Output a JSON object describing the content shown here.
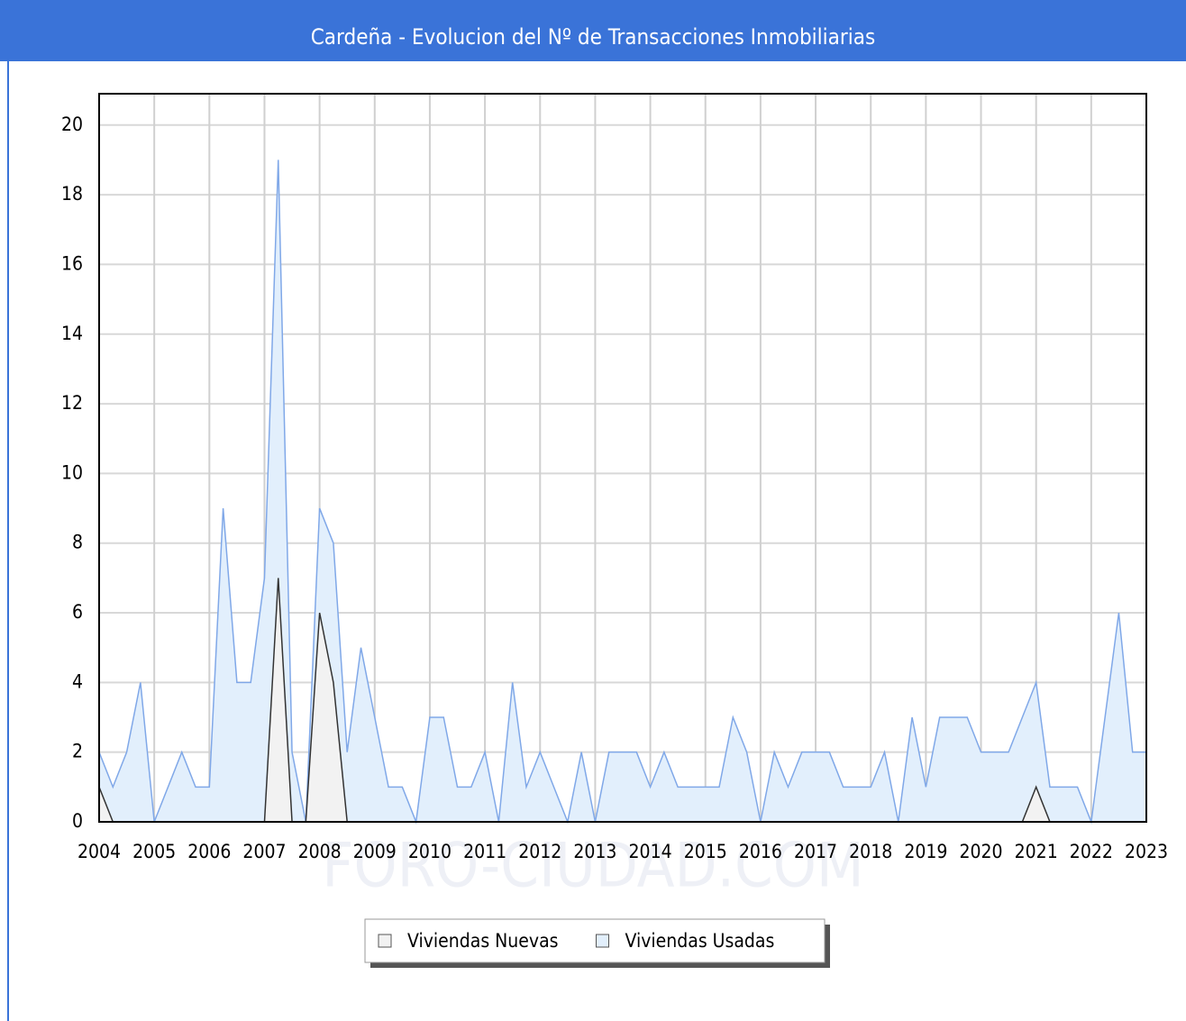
{
  "chart_data": {
    "type": "area",
    "title": "Cardeña - Evolucion del Nº de Transacciones Inmobiliarias",
    "watermark": "FORO-CIUDAD.COM",
    "x": [
      2004,
      2004.25,
      2004.5,
      2004.75,
      2005,
      2005.25,
      2005.5,
      2005.75,
      2006,
      2006.25,
      2006.5,
      2006.75,
      2007,
      2007.25,
      2007.5,
      2007.75,
      2008,
      2008.25,
      2008.5,
      2008.75,
      2009,
      2009.25,
      2009.5,
      2009.75,
      2010,
      2010.25,
      2010.5,
      2010.75,
      2011,
      2011.25,
      2011.5,
      2011.75,
      2012,
      2012.25,
      2012.5,
      2012.75,
      2013,
      2013.25,
      2013.5,
      2013.75,
      2014,
      2014.25,
      2014.5,
      2014.75,
      2015,
      2015.25,
      2015.5,
      2015.75,
      2016,
      2016.25,
      2016.5,
      2016.75,
      2017,
      2017.25,
      2017.5,
      2017.75,
      2018,
      2018.25,
      2018.5,
      2018.75,
      2019,
      2019.25,
      2019.5,
      2019.75,
      2020,
      2020.25,
      2020.5,
      2020.75,
      2021,
      2021.25,
      2021.5,
      2021.75,
      2022,
      2022.25,
      2022.5,
      2022.75,
      2023
    ],
    "series": [
      {
        "name": "Viviendas Usadas",
        "color": "#e2effc",
        "stroke": "#80a8e8",
        "values": [
          2,
          1,
          2,
          4,
          0,
          1,
          2,
          1,
          1,
          9,
          4,
          4,
          7,
          19,
          2,
          0,
          9,
          8,
          2,
          5,
          3,
          1,
          1,
          0,
          3,
          3,
          1,
          1,
          2,
          0,
          4,
          1,
          2,
          1,
          0,
          2,
          0,
          2,
          2,
          2,
          1,
          2,
          1,
          1,
          1,
          1,
          3,
          2,
          0,
          2,
          1,
          2,
          2,
          2,
          1,
          1,
          1,
          2,
          0,
          3,
          1,
          3,
          3,
          3,
          2,
          2,
          2,
          3,
          4,
          1,
          1,
          1,
          0,
          3,
          6,
          2,
          2
        ]
      },
      {
        "name": "Viviendas Nuevas",
        "color": "#f2f2f2",
        "stroke": "#333333",
        "values": [
          1,
          0,
          0,
          0,
          0,
          0,
          0,
          0,
          0,
          0,
          0,
          0,
          0,
          7,
          0,
          0,
          6,
          4,
          0,
          0,
          0,
          0,
          0,
          0,
          0,
          0,
          0,
          0,
          0,
          0,
          0,
          0,
          0,
          0,
          0,
          0,
          0,
          0,
          0,
          0,
          0,
          0,
          0,
          0,
          0,
          0,
          0,
          0,
          0,
          0,
          0,
          0,
          0,
          0,
          0,
          0,
          0,
          0,
          0,
          0,
          0,
          0,
          0,
          0,
          0,
          0,
          0,
          0,
          1,
          0,
          0,
          0,
          0,
          0,
          0,
          0,
          0
        ]
      }
    ],
    "legend_order": [
      1,
      0
    ],
    "xlim": [
      2004,
      2023
    ],
    "xticks": [
      2004,
      2005,
      2006,
      2007,
      2008,
      2009,
      2010,
      2011,
      2012,
      2013,
      2014,
      2015,
      2016,
      2017,
      2018,
      2019,
      2020,
      2021,
      2022,
      2023
    ],
    "ylim": [
      0,
      20.9
    ],
    "yticks": [
      0,
      2,
      4,
      6,
      8,
      10,
      12,
      14,
      16,
      18,
      20
    ],
    "grid": true
  }
}
